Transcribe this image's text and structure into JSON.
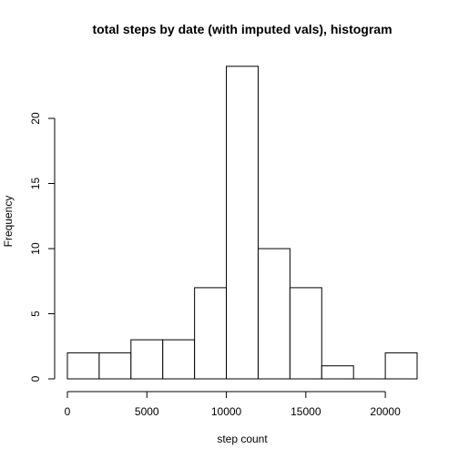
{
  "chart_data": {
    "type": "bar",
    "title": "total steps by date (with imputed vals), histogram",
    "xlabel": "step count",
    "ylabel": "Frequency",
    "bins": [
      {
        "start": 0,
        "end": 2000,
        "count": 2
      },
      {
        "start": 2000,
        "end": 4000,
        "count": 2
      },
      {
        "start": 4000,
        "end": 6000,
        "count": 3
      },
      {
        "start": 6000,
        "end": 8000,
        "count": 3
      },
      {
        "start": 8000,
        "end": 10000,
        "count": 7
      },
      {
        "start": 10000,
        "end": 12000,
        "count": 24
      },
      {
        "start": 12000,
        "end": 14000,
        "count": 10
      },
      {
        "start": 14000,
        "end": 16000,
        "count": 7
      },
      {
        "start": 16000,
        "end": 18000,
        "count": 1
      },
      {
        "start": 18000,
        "end": 20000,
        "count": 0
      },
      {
        "start": 20000,
        "end": 22000,
        "count": 2
      }
    ],
    "xlim": [
      0,
      22000
    ],
    "ylim": [
      0,
      24
    ],
    "x_ticks": [
      0,
      5000,
      10000,
      15000,
      20000
    ],
    "x_tick_labels": [
      "0",
      "5000",
      "10000",
      "15000",
      "20000"
    ],
    "y_ticks": [
      0,
      5,
      10,
      15,
      20
    ],
    "y_tick_labels": [
      "0",
      "5",
      "10",
      "15",
      "20"
    ],
    "grid": false,
    "bar_fill": "#ffffff",
    "bar_stroke": "#000000"
  }
}
